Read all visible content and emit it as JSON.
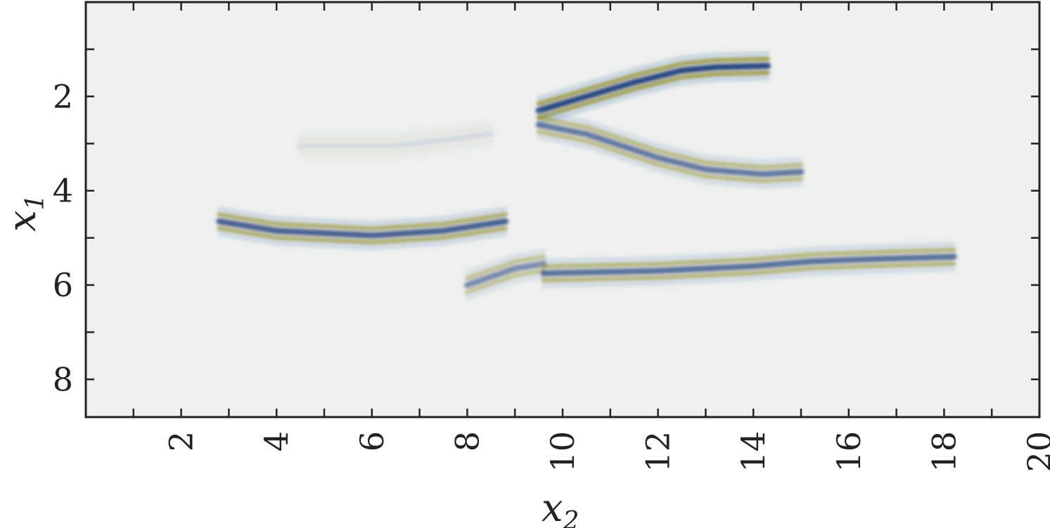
{
  "chart_data": {
    "type": "heatmap",
    "title": "",
    "xlabel": "x",
    "xlabel_sub": "2",
    "ylabel": "x",
    "ylabel_sub": "1",
    "xlim": [
      0,
      20
    ],
    "ylim": [
      0,
      8.8
    ],
    "y_inverted": true,
    "x_ticks": [
      2,
      4,
      6,
      8,
      10,
      12,
      14,
      16,
      18,
      20
    ],
    "y_ticks": [
      2,
      4,
      6,
      8
    ],
    "grid": false,
    "colormap": {
      "negative": "#1f3f7a",
      "mid_negative": "#7ea3cc",
      "neutral": "#eef0ee",
      "positive": "#8a8a2a"
    },
    "background_color": "#eef0ee",
    "reflectors": [
      {
        "name": "",
        "points": [
          [
            2.8,
            4.65
          ],
          [
            4.0,
            4.85
          ],
          [
            6.0,
            4.95
          ],
          [
            7.5,
            4.85
          ],
          [
            8.8,
            4.65
          ]
        ],
        "strength": 0.85
      },
      {
        "name": "",
        "points": [
          [
            8.0,
            6.0
          ],
          [
            9.0,
            5.65
          ],
          [
            9.6,
            5.55
          ]
        ],
        "strength": 0.6
      },
      {
        "name": "",
        "points": [
          [
            9.6,
            5.75
          ],
          [
            12.0,
            5.7
          ],
          [
            14.0,
            5.6
          ],
          [
            15.2,
            5.5
          ],
          [
            16.5,
            5.45
          ],
          [
            18.2,
            5.4
          ]
        ],
        "strength": 0.75
      },
      {
        "name": "",
        "points": [
          [
            9.5,
            2.3
          ],
          [
            10.5,
            2.0
          ],
          [
            11.5,
            1.7
          ],
          [
            12.5,
            1.45
          ],
          [
            13.2,
            1.38
          ],
          [
            14.3,
            1.35
          ]
        ],
        "strength": 1.0
      },
      {
        "name": "",
        "points": [
          [
            9.5,
            2.6
          ],
          [
            10.5,
            2.8
          ],
          [
            12.0,
            3.3
          ],
          [
            13.0,
            3.55
          ],
          [
            14.2,
            3.65
          ],
          [
            15.0,
            3.6
          ]
        ],
        "strength": 0.7
      },
      {
        "name": "",
        "points": [
          [
            4.5,
            3.05
          ],
          [
            6.5,
            3.05
          ],
          [
            8.5,
            2.8
          ]
        ],
        "strength": 0.12
      }
    ]
  }
}
